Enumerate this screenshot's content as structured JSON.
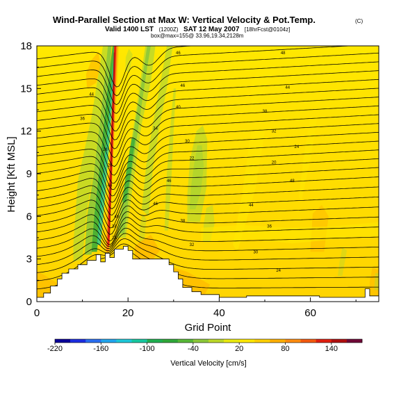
{
  "chart_data": {
    "type": "heatmap",
    "title": "Wind-Parallel Section at Max W: Vertical Velocity & Pot.Temp.",
    "title_mark": "(C)",
    "subtitle": {
      "valid_prefix": "Valid 1400 LST",
      "valid_run": "(1200Z)",
      "valid_main": "SAT 12 May 2007",
      "valid_suffix": "[18hrFcst@0104z]",
      "location": "box@max=155@ 33.96,19.34,2128m"
    },
    "xlabel": "Grid Point",
    "ylabel": "Height [Kft MSL]",
    "xlim": [
      0,
      75
    ],
    "ylim": [
      0,
      18
    ],
    "xticks": [
      "0",
      "20",
      "40",
      "60"
    ],
    "yticks": [
      "0",
      "3",
      "6",
      "9",
      "12",
      "15",
      "18"
    ],
    "colorbar": {
      "label": "Vertical Velocity [cm/s]",
      "tick_labels": [
        "-220",
        "-160",
        "-100",
        "-40",
        "20",
        "80",
        "140"
      ],
      "tick_values": [
        -220,
        -160,
        -100,
        -40,
        20,
        80,
        140
      ],
      "range": [
        -220,
        180
      ],
      "step": 20,
      "colors": [
        "#0a0099",
        "#1c2ee0",
        "#2a6ef0",
        "#22a6ee",
        "#1ec8d8",
        "#18c8a0",
        "#20b050",
        "#30a83a",
        "#58b838",
        "#8cc83a",
        "#bcd82a",
        "#eaea10",
        "#ffe800",
        "#ffd000",
        "#ffb000",
        "#ff8c10",
        "#f45a10",
        "#e02010",
        "#b01010",
        "#700a38"
      ]
    },
    "contour_labels": [
      "46",
      "48",
      "44",
      "46",
      "44",
      "40",
      "38",
      "36",
      "34",
      "32",
      "30",
      "28",
      "24",
      "22",
      "20",
      "26"
    ]
  }
}
